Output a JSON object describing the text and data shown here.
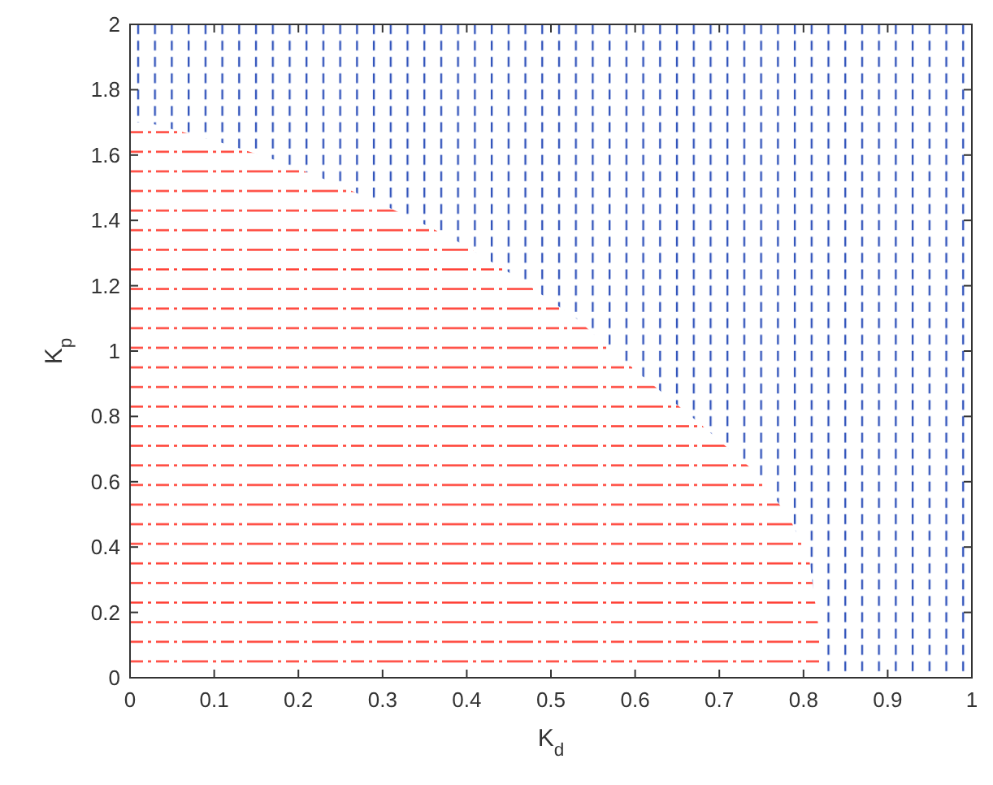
{
  "chart_data": {
    "type": "area",
    "stacked": true,
    "xlabel": "K$_{d}$",
    "ylabel": "K$_{p}$",
    "x": [
      0,
      0.02,
      0.106,
      0.178,
      0.237,
      0.29,
      0.34,
      0.386,
      0.425,
      0.463,
      0.496,
      0.53,
      0.556,
      0.61,
      0.676,
      0.747,
      0.785,
      0.807,
      0.826,
      1
    ],
    "series": [
      {
        "color": "#ff3b30",
        "line_style": "dashdot",
        "values": [
          1.7,
          1.7,
          1.64,
          1.58,
          1.52,
          1.46,
          1.4,
          1.34,
          1.28,
          1.22,
          1.16,
          1.1,
          1.04,
          0.92,
          0.78,
          0.62,
          0.48,
          0.36,
          0,
          0
        ]
      },
      {
        "color": "#3355bb",
        "line_style": "dashed",
        "values": [
          0.3,
          0.3,
          0.36,
          0.42,
          0.48,
          0.54,
          0.6,
          0.66,
          0.72,
          0.78,
          0.84,
          0.9,
          0.96,
          1.08,
          1.22,
          1.38,
          1.52,
          1.64,
          2,
          2
        ]
      }
    ],
    "xlim": [
      0,
      1
    ],
    "xticks": [
      0,
      0.1,
      0.2,
      0.3,
      0.4,
      0.5,
      0.6,
      0.7,
      0.8,
      0.9,
      1
    ],
    "ylim": [
      0,
      2
    ],
    "yticks": [
      0,
      0.2,
      0.4,
      0.6,
      0.8,
      1,
      1.2,
      1.4,
      1.6,
      1.8,
      2
    ],
    "grid": false
  }
}
